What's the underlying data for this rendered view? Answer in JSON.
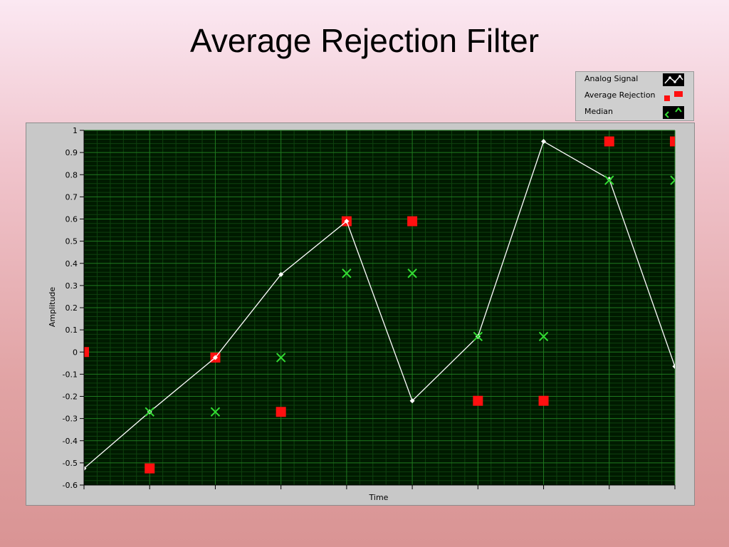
{
  "slide": {
    "title": "Average Rejection Filter"
  },
  "colors": {
    "plot_bg": "#001a00",
    "grid_major": "#1f7a1f",
    "grid_minor": "#0e420e",
    "analog": "#ffffff",
    "avg_rejection": "#ff1010",
    "median": "#33dd33"
  },
  "legend": {
    "items": [
      {
        "label": "Analog Signal",
        "icon": "line-with-points-icon"
      },
      {
        "label": "Average Rejection",
        "icon": "red-square-marker-icon"
      },
      {
        "label": "Median",
        "icon": "green-x-marker-icon"
      }
    ]
  },
  "chart_data": {
    "type": "scatter",
    "xlabel": "Time",
    "ylabel": "Amplitude",
    "ylim": [
      -0.6,
      1
    ],
    "yticks": [
      "1",
      "0.9",
      "0.8",
      "0.7",
      "0.6",
      "0.5",
      "0.4",
      "0.3",
      "0.2",
      "0.1",
      "0",
      "-0.1",
      "-0.2",
      "-0.3",
      "-0.4",
      "-0.5",
      "-0.6"
    ],
    "x_tick_count": 10,
    "grid": true,
    "legend_position": "top-right",
    "series": [
      {
        "name": "Analog Signal",
        "style": "line-points",
        "points": [
          [
            0,
            -0.525
          ],
          [
            1,
            -0.27
          ],
          [
            2,
            -0.025
          ],
          [
            3,
            0.35
          ],
          [
            4,
            0.59
          ],
          [
            5,
            -0.22
          ],
          [
            6,
            0.07
          ],
          [
            7,
            0.95
          ],
          [
            8,
            0.78
          ],
          [
            9,
            -0.065
          ]
        ]
      },
      {
        "name": "Average Rejection",
        "style": "square",
        "points": [
          [
            0,
            0
          ],
          [
            1,
            -0.525
          ],
          [
            2,
            -0.025
          ],
          [
            3,
            -0.27
          ],
          [
            4,
            0.59
          ],
          [
            5,
            0.59
          ],
          [
            6,
            -0.22
          ],
          [
            7,
            -0.22
          ],
          [
            8,
            0.95
          ],
          [
            9,
            0.95
          ]
        ]
      },
      {
        "name": "Median",
        "style": "x",
        "points": [
          [
            1,
            -0.27
          ],
          [
            2,
            -0.27
          ],
          [
            3,
            -0.025
          ],
          [
            4,
            0.355
          ],
          [
            5,
            0.355
          ],
          [
            6,
            0.07
          ],
          [
            7,
            0.07
          ],
          [
            8,
            0.775
          ],
          [
            9,
            0.775
          ]
        ]
      }
    ]
  }
}
